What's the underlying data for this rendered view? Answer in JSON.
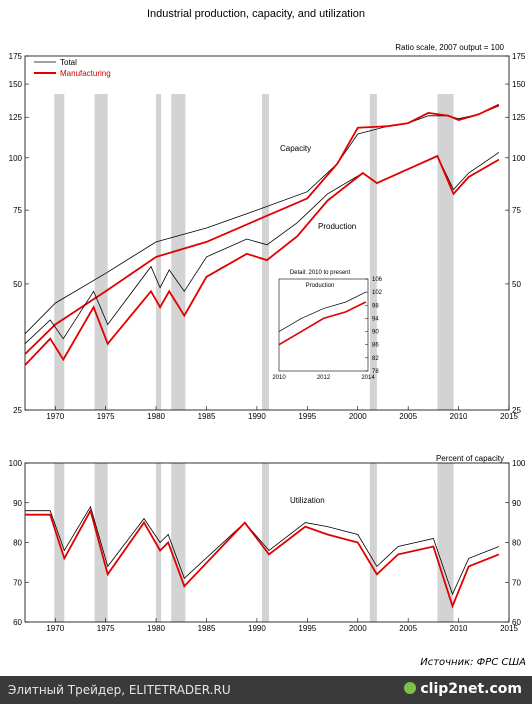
{
  "chart_data": [
    {
      "type": "line",
      "title": "Industrial production, capacity, and utilization",
      "note": "Ratio scale, 2007 output = 100",
      "scale": "log",
      "x_range": [
        1967,
        2015
      ],
      "ylim": [
        25,
        175
      ],
      "y_ticks": [
        25,
        50,
        75,
        100,
        125,
        150,
        175
      ],
      "x_ticks": [
        1970,
        1975,
        1980,
        1985,
        1990,
        1995,
        2000,
        2005,
        2010,
        2015
      ],
      "legend": {
        "placement": "top-left",
        "entries": [
          "Total",
          "Manufacturing"
        ]
      },
      "labels": {
        "capacity": "Capacity",
        "production": "Production"
      },
      "recessions": [
        [
          1969.9,
          1970.9
        ],
        [
          1973.9,
          1975.2
        ],
        [
          1980.0,
          1980.5
        ],
        [
          1981.5,
          1982.9
        ],
        [
          1990.5,
          1991.2
        ],
        [
          2001.2,
          2001.9
        ],
        [
          2007.9,
          2009.5
        ]
      ],
      "series": [
        {
          "name": "Total",
          "group": "capacity",
          "color": "#000000",
          "x": [
            1967,
            1970,
            1975,
            1980,
            1985,
            1990,
            1995,
            1998,
            2000,
            2003,
            2005,
            2007,
            2009,
            2010,
            2012,
            2014
          ],
          "values": [
            38,
            45,
            53,
            63,
            68,
            75,
            83,
            97,
            114,
            119,
            121,
            126,
            126,
            124,
            127,
            133
          ]
        },
        {
          "name": "Manufacturing",
          "group": "capacity",
          "color": "#e00000",
          "x": [
            1967,
            1970,
            1975,
            1980,
            1985,
            1990,
            1995,
            1998,
            2000,
            2003,
            2005,
            2007,
            2009,
            2010,
            2012,
            2014
          ],
          "values": [
            34,
            40,
            48,
            58,
            63,
            71,
            80,
            97,
            118,
            119,
            121,
            128,
            126,
            123,
            127,
            134
          ]
        },
        {
          "name": "Total",
          "group": "production",
          "color": "#000000",
          "x": [
            1967,
            1969.5,
            1970.8,
            1973.8,
            1975.2,
            1979.5,
            1980.4,
            1981.3,
            1982.8,
            1985,
            1989,
            1991,
            1994,
            1997,
            2000.5,
            2001.9,
            2005,
            2007.9,
            2009.5,
            2011,
            2014
          ],
          "values": [
            36,
            41,
            37,
            48,
            40,
            55,
            49,
            54,
            48,
            58,
            64,
            62,
            70,
            82,
            92,
            87,
            94,
            101,
            84,
            92,
            103
          ]
        },
        {
          "name": "Manufacturing",
          "group": "production",
          "color": "#e00000",
          "x": [
            1967,
            1969.5,
            1970.8,
            1973.8,
            1975.2,
            1979.5,
            1980.4,
            1981.3,
            1982.8,
            1985,
            1989,
            1991,
            1994,
            1997,
            2000.5,
            2001.9,
            2005,
            2007.9,
            2009.5,
            2011,
            2014
          ],
          "values": [
            32,
            37,
            33,
            44,
            36,
            48,
            44,
            48,
            42,
            52,
            59,
            57,
            65,
            79,
            92,
            87,
            94,
            101,
            82,
            90,
            99
          ]
        }
      ],
      "inset": {
        "title": "Detail: 2010 to present",
        "label": "Production",
        "x_range": [
          2010,
          2014
        ],
        "x_ticks": [
          2010,
          2012,
          2014
        ],
        "ylim": [
          78,
          106
        ],
        "y_ticks": [
          78,
          82,
          86,
          90,
          94,
          98,
          102,
          106
        ],
        "series": [
          {
            "name": "Total",
            "color": "#000000",
            "x": [
              2010,
              2011,
              2012,
              2013,
              2013.9
            ],
            "values": [
              90,
              94,
              97,
              99,
              102
            ]
          },
          {
            "name": "Manufacturing",
            "color": "#e00000",
            "x": [
              2010,
              2011,
              2012,
              2013,
              2013.9
            ],
            "values": [
              86,
              90,
              94,
              96,
              99
            ]
          }
        ]
      }
    },
    {
      "type": "line",
      "title": "Percent of capacity",
      "ylim": [
        60,
        100
      ],
      "y_ticks": [
        60,
        70,
        80,
        90,
        100
      ],
      "x_range": [
        1967,
        2015
      ],
      "x_ticks": [
        1970,
        1975,
        1980,
        1985,
        1990,
        1995,
        2000,
        2005,
        2010,
        2015
      ],
      "labels": {
        "utilization": "Utilization"
      },
      "series": [
        {
          "name": "Total",
          "color": "#000000",
          "x": [
            1967,
            1969.5,
            1970.9,
            1973.5,
            1975.2,
            1978.8,
            1980.4,
            1981.2,
            1982.8,
            1988.8,
            1991.2,
            1994.8,
            1997,
            2000,
            2001.9,
            2004,
            2007.5,
            2009.4,
            2011,
            2013,
            2014
          ],
          "values": [
            88,
            88,
            78,
            89,
            74,
            86,
            80,
            82,
            71,
            85,
            78,
            85,
            84,
            82,
            74,
            79,
            81,
            67,
            76,
            78,
            79
          ]
        },
        {
          "name": "Manufacturing",
          "color": "#e00000",
          "x": [
            1967,
            1969.5,
            1970.9,
            1973.5,
            1975.2,
            1978.8,
            1980.4,
            1981.2,
            1982.8,
            1988.8,
            1991.2,
            1994.8,
            1997,
            2000,
            2001.9,
            2004,
            2007.5,
            2009.4,
            2011,
            2013,
            2014
          ],
          "values": [
            87,
            87,
            76,
            88,
            72,
            85,
            78,
            80,
            69,
            85,
            77,
            84,
            82,
            80,
            72,
            77,
            79,
            64,
            74,
            76,
            77
          ]
        }
      ]
    }
  ],
  "source_text": "Источник: ФРС США",
  "footer": {
    "left": "Элитный Трейдер, ELITETRADER.RU",
    "logo": "clip2net.com"
  }
}
